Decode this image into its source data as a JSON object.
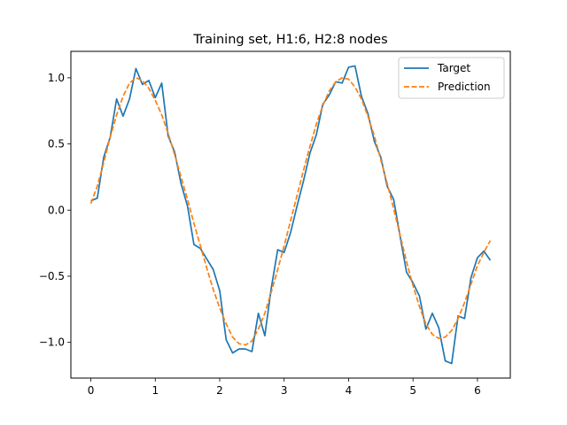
{
  "chart_data": {
    "type": "line",
    "title": "Training set, H1:6, H2:8 nodes",
    "xlabel": "",
    "ylabel": "",
    "xlim": [
      -0.31,
      6.51
    ],
    "ylim": [
      -1.27,
      1.2
    ],
    "xticks": [
      0,
      1,
      2,
      3,
      4,
      5,
      6
    ],
    "xtick_labels": [
      "0",
      "1",
      "2",
      "3",
      "4",
      "5",
      "6"
    ],
    "yticks": [
      -1.0,
      -0.5,
      0.0,
      0.5,
      1.0
    ],
    "ytick_labels": [
      "−1.0",
      "−0.5",
      "0.0",
      "0.5",
      "1.0"
    ],
    "grid": false,
    "legend_position": "top-right",
    "series": [
      {
        "name": "Target",
        "color": "#1f77b4",
        "style": "solid",
        "x": [
          0.0,
          0.1,
          0.2,
          0.3,
          0.4,
          0.5,
          0.6,
          0.7,
          0.8,
          0.9,
          1.0,
          1.1,
          1.2,
          1.3,
          1.4,
          1.5,
          1.6,
          1.7,
          1.8,
          1.9,
          2.0,
          2.1,
          2.2,
          2.3,
          2.4,
          2.5,
          2.6,
          2.7,
          2.8,
          2.9,
          3.0,
          3.1,
          3.2,
          3.3,
          3.4,
          3.5,
          3.6,
          3.7,
          3.8,
          3.9,
          4.0,
          4.1,
          4.2,
          4.3,
          4.4,
          4.5,
          4.6,
          4.7,
          4.8,
          4.9,
          5.0,
          5.1,
          5.2,
          5.3,
          5.4,
          5.5,
          5.6,
          5.7,
          5.8,
          5.9,
          6.0,
          6.1,
          6.2
        ],
        "y": [
          0.07,
          0.09,
          0.4,
          0.55,
          0.84,
          0.71,
          0.84,
          1.07,
          0.95,
          0.98,
          0.85,
          0.96,
          0.56,
          0.44,
          0.2,
          0.03,
          -0.26,
          -0.29,
          -0.37,
          -0.45,
          -0.61,
          -0.98,
          -1.08,
          -1.05,
          -1.05,
          -1.07,
          -0.78,
          -0.95,
          -0.59,
          -0.3,
          -0.32,
          -0.17,
          0.03,
          0.22,
          0.43,
          0.57,
          0.8,
          0.87,
          0.97,
          0.96,
          1.08,
          1.09,
          0.86,
          0.73,
          0.52,
          0.4,
          0.18,
          0.08,
          -0.2,
          -0.47,
          -0.55,
          -0.65,
          -0.9,
          -0.78,
          -0.89,
          -1.14,
          -1.16,
          -0.8,
          -0.82,
          -0.51,
          -0.36,
          -0.31,
          -0.38
        ]
      },
      {
        "name": "Prediction",
        "color": "#ff7f0e",
        "style": "dashed",
        "x": [
          0.0,
          0.1,
          0.2,
          0.3,
          0.4,
          0.5,
          0.6,
          0.7,
          0.8,
          0.9,
          1.0,
          1.1,
          1.2,
          1.3,
          1.4,
          1.5,
          1.6,
          1.7,
          1.8,
          1.9,
          2.0,
          2.1,
          2.2,
          2.3,
          2.4,
          2.5,
          2.6,
          2.7,
          2.8,
          2.9,
          3.0,
          3.1,
          3.2,
          3.3,
          3.4,
          3.5,
          3.6,
          3.7,
          3.8,
          3.9,
          4.0,
          4.1,
          4.2,
          4.3,
          4.4,
          4.5,
          4.6,
          4.7,
          4.8,
          4.9,
          5.0,
          5.1,
          5.2,
          5.3,
          5.4,
          5.5,
          5.6,
          5.7,
          5.8,
          5.9,
          6.0,
          6.1,
          6.2
        ],
        "y": [
          0.05,
          0.18,
          0.36,
          0.55,
          0.72,
          0.86,
          0.96,
          1.0,
          0.98,
          0.92,
          0.83,
          0.72,
          0.58,
          0.42,
          0.25,
          0.08,
          -0.1,
          -0.27,
          -0.44,
          -0.6,
          -0.74,
          -0.86,
          -0.96,
          -1.01,
          -1.02,
          -0.99,
          -0.9,
          -0.78,
          -0.62,
          -0.45,
          -0.27,
          -0.08,
          0.11,
          0.3,
          0.48,
          0.65,
          0.79,
          0.9,
          0.97,
          1.0,
          0.99,
          0.93,
          0.84,
          0.71,
          0.56,
          0.38,
          0.2,
          0.01,
          -0.19,
          -0.39,
          -0.57,
          -0.73,
          -0.86,
          -0.94,
          -0.97,
          -0.96,
          -0.91,
          -0.82,
          -0.7,
          -0.56,
          -0.42,
          -0.32,
          -0.23
        ]
      }
    ]
  }
}
